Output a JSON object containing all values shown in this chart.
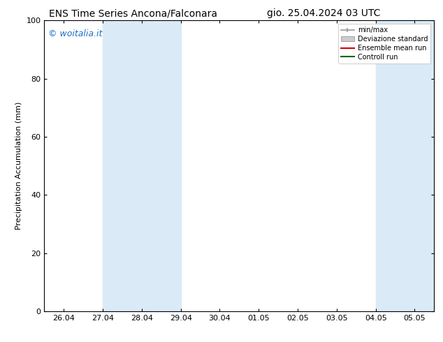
{
  "title_left": "ENS Time Series Ancona/Falconara",
  "title_right": "gio. 25.04.2024 03 UTC",
  "ylabel": "Precipitation Accumulation (mm)",
  "watermark": "© woitalia.it",
  "ylim": [
    0,
    100
  ],
  "yticks": [
    0,
    20,
    40,
    60,
    80,
    100
  ],
  "xtick_labels": [
    "26.04",
    "27.04",
    "28.04",
    "29.04",
    "30.04",
    "01.05",
    "02.05",
    "03.05",
    "04.05",
    "05.05"
  ],
  "xtick_positions": [
    0,
    1,
    2,
    3,
    4,
    5,
    6,
    7,
    8,
    9
  ],
  "xlim": [
    -0.5,
    9.5
  ],
  "shaded_regions": [
    {
      "xmin": 1,
      "xmax": 3,
      "color": "#daeaf7"
    },
    {
      "xmin": 8,
      "xmax": 10,
      "color": "#daeaf7"
    }
  ],
  "legend_entries": [
    {
      "label": "min/max",
      "color": "#999999",
      "type": "line_with_caps"
    },
    {
      "label": "Deviazione standard",
      "color": "#cccccc",
      "type": "bar"
    },
    {
      "label": "Ensemble mean run",
      "color": "#dd0000",
      "type": "line"
    },
    {
      "label": "Controll run",
      "color": "#006600",
      "type": "line"
    }
  ],
  "background_color": "#ffffff",
  "plot_bg_color": "#ffffff",
  "title_fontsize": 10,
  "label_fontsize": 8,
  "tick_fontsize": 8,
  "watermark_color": "#1a6ec7",
  "watermark_fontsize": 9
}
